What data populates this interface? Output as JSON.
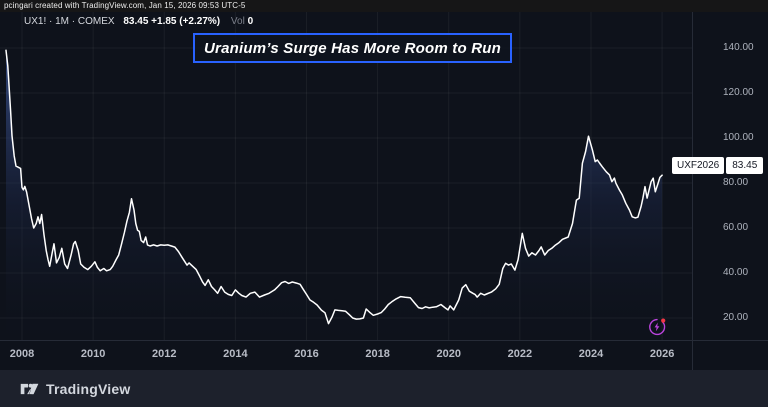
{
  "attribution": {
    "text": "pcingari created with TradingView.com, Jan 15, 2026 09:53 UTC-5"
  },
  "legend": {
    "symbol_line": "UX1! · 1M · COMEX",
    "price_change": "83.45 +1.85 (+2.27%)",
    "volume_label": "Vol",
    "volume_value": "0"
  },
  "annotation_title": "Uranium’s Surge Has More Room to Run",
  "series_label": {
    "contract": "UXF2026",
    "price": "83.45"
  },
  "footer": {
    "brand": "TradingView"
  },
  "icons": {
    "event_icon": "lightning-bolt-in-circle-with-red-dot"
  },
  "colors": {
    "background": "#0e121b",
    "line": "#ffffff",
    "area_top": "rgba(72,102,178,0.72)",
    "area_mid": "rgba(30,42,78,0.38)",
    "area_bottom": "rgba(15,19,30,0.04)",
    "grid": "rgba(255,255,255,0.055)",
    "axis_text": "#aeb3bd",
    "accent_blue": "#2962ff",
    "event_purple": "#bb44dd",
    "event_red": "#f23645",
    "footer_bg": "#1d212c"
  },
  "chart_data": {
    "type": "area",
    "title": "Uranium’s Surge Has More Room to Run",
    "series_name": "UX1! COMEX uranium futures, monthly",
    "xlabel": "",
    "ylabel": "",
    "x_axis": {
      "ticks": [
        2008,
        2010,
        2012,
        2014,
        2016,
        2018,
        2020,
        2022,
        2024,
        2026
      ],
      "range": [
        2007.4,
        2026.9
      ]
    },
    "y_axis": {
      "ticks": [
        20,
        40,
        60,
        80,
        100,
        120,
        140
      ],
      "tick_format": "0.00",
      "range": [
        8,
        152
      ]
    },
    "grid": true,
    "legend_position": "none",
    "last_value": 83.45,
    "points": [
      [
        2007.55,
        139
      ],
      [
        2007.6,
        132
      ],
      [
        2007.63,
        125
      ],
      [
        2007.68,
        112
      ],
      [
        2007.72,
        101
      ],
      [
        2007.78,
        92
      ],
      [
        2007.83,
        87.5
      ],
      [
        2007.9,
        87
      ],
      [
        2007.96,
        86.5
      ],
      [
        2008.0,
        78
      ],
      [
        2008.04,
        77
      ],
      [
        2008.08,
        78.5
      ],
      [
        2008.13,
        76
      ],
      [
        2008.2,
        70
      ],
      [
        2008.27,
        64
      ],
      [
        2008.33,
        60
      ],
      [
        2008.4,
        62
      ],
      [
        2008.45,
        65
      ],
      [
        2008.5,
        62
      ],
      [
        2008.55,
        66
      ],
      [
        2008.62,
        57
      ],
      [
        2008.68,
        50
      ],
      [
        2008.73,
        46
      ],
      [
        2008.78,
        43
      ],
      [
        2008.85,
        49
      ],
      [
        2008.9,
        53
      ],
      [
        2008.97,
        44.5
      ],
      [
        2009.05,
        47
      ],
      [
        2009.12,
        51
      ],
      [
        2009.2,
        44
      ],
      [
        2009.28,
        42
      ],
      [
        2009.38,
        48
      ],
      [
        2009.45,
        53
      ],
      [
        2009.5,
        54
      ],
      [
        2009.58,
        50
      ],
      [
        2009.65,
        44
      ],
      [
        2009.75,
        42.5
      ],
      [
        2009.85,
        41.5
      ],
      [
        2009.95,
        43
      ],
      [
        2010.05,
        45
      ],
      [
        2010.12,
        42.5
      ],
      [
        2010.2,
        41
      ],
      [
        2010.3,
        42
      ],
      [
        2010.38,
        41
      ],
      [
        2010.48,
        41.5
      ],
      [
        2010.55,
        43
      ],
      [
        2010.65,
        46
      ],
      [
        2010.72,
        48
      ],
      [
        2010.8,
        53
      ],
      [
        2010.88,
        58
      ],
      [
        2010.95,
        63
      ],
      [
        2011.02,
        67
      ],
      [
        2011.08,
        73
      ],
      [
        2011.15,
        68
      ],
      [
        2011.2,
        62
      ],
      [
        2011.25,
        59
      ],
      [
        2011.3,
        58.5
      ],
      [
        2011.35,
        54.5
      ],
      [
        2011.42,
        53.5
      ],
      [
        2011.48,
        56
      ],
      [
        2011.53,
        52.5
      ],
      [
        2011.6,
        52
      ],
      [
        2011.7,
        52.5
      ],
      [
        2011.8,
        52
      ],
      [
        2011.9,
        52.5
      ],
      [
        2012.0,
        52.3
      ],
      [
        2012.1,
        52.5
      ],
      [
        2012.2,
        52
      ],
      [
        2012.3,
        51.5
      ],
      [
        2012.4,
        49.5
      ],
      [
        2012.5,
        47
      ],
      [
        2012.58,
        45
      ],
      [
        2012.64,
        43.5
      ],
      [
        2012.7,
        44.5
      ],
      [
        2012.8,
        43
      ],
      [
        2012.9,
        41.5
      ],
      [
        2013.0,
        38.5
      ],
      [
        2013.08,
        36
      ],
      [
        2013.15,
        34.5
      ],
      [
        2013.24,
        37
      ],
      [
        2013.33,
        34
      ],
      [
        2013.42,
        32.5
      ],
      [
        2013.5,
        31
      ],
      [
        2013.6,
        34
      ],
      [
        2013.7,
        31.5
      ],
      [
        2013.8,
        30.5
      ],
      [
        2013.9,
        30
      ],
      [
        2014.0,
        32.5
      ],
      [
        2014.1,
        31
      ],
      [
        2014.18,
        30
      ],
      [
        2014.3,
        29.3
      ],
      [
        2014.42,
        31
      ],
      [
        2014.55,
        31.5
      ],
      [
        2014.68,
        29.3
      ],
      [
        2014.82,
        30.2
      ],
      [
        2014.95,
        31
      ],
      [
        2015.1,
        32.5
      ],
      [
        2015.2,
        34
      ],
      [
        2015.3,
        35.7
      ],
      [
        2015.4,
        36.2
      ],
      [
        2015.5,
        35.4
      ],
      [
        2015.6,
        36
      ],
      [
        2015.72,
        35.5
      ],
      [
        2015.82,
        35
      ],
      [
        2015.9,
        33
      ],
      [
        2016.0,
        30.5
      ],
      [
        2016.1,
        28
      ],
      [
        2016.2,
        27
      ],
      [
        2016.3,
        25.8
      ],
      [
        2016.42,
        23.5
      ],
      [
        2016.52,
        22.3
      ],
      [
        2016.62,
        17.5
      ],
      [
        2016.72,
        20.5
      ],
      [
        2016.8,
        23.6
      ],
      [
        2016.9,
        23.4
      ],
      [
        2017.0,
        23.2
      ],
      [
        2017.1,
        23
      ],
      [
        2017.2,
        21.5
      ],
      [
        2017.3,
        20
      ],
      [
        2017.4,
        19.5
      ],
      [
        2017.5,
        19.6
      ],
      [
        2017.6,
        20
      ],
      [
        2017.68,
        24
      ],
      [
        2017.78,
        22.5
      ],
      [
        2017.88,
        21.2
      ],
      [
        2018.0,
        21.8
      ],
      [
        2018.1,
        22.4
      ],
      [
        2018.2,
        24
      ],
      [
        2018.3,
        26
      ],
      [
        2018.4,
        27.2
      ],
      [
        2018.52,
        28.5
      ],
      [
        2018.65,
        29.5
      ],
      [
        2018.78,
        29.2
      ],
      [
        2018.92,
        29
      ],
      [
        2019.05,
        26.5
      ],
      [
        2019.15,
        24.6
      ],
      [
        2019.25,
        24.2
      ],
      [
        2019.35,
        25
      ],
      [
        2019.45,
        24.5
      ],
      [
        2019.55,
        24.8
      ],
      [
        2019.65,
        25
      ],
      [
        2019.78,
        26
      ],
      [
        2019.9,
        24.5
      ],
      [
        2019.98,
        23.6
      ],
      [
        2020.04,
        25.4
      ],
      [
        2020.14,
        23.6
      ],
      [
        2020.28,
        28
      ],
      [
        2020.38,
        33.3
      ],
      [
        2020.48,
        34.8
      ],
      [
        2020.58,
        31.9
      ],
      [
        2020.68,
        31
      ],
      [
        2020.74,
        30.5
      ],
      [
        2020.8,
        29.3
      ],
      [
        2020.9,
        31
      ],
      [
        2021.0,
        30.2
      ],
      [
        2021.1,
        30.9
      ],
      [
        2021.2,
        31.5
      ],
      [
        2021.32,
        33
      ],
      [
        2021.42,
        35
      ],
      [
        2021.52,
        42
      ],
      [
        2021.6,
        44.3
      ],
      [
        2021.68,
        43.5
      ],
      [
        2021.76,
        44
      ],
      [
        2021.86,
        41.3
      ],
      [
        2021.95,
        46
      ],
      [
        2022.07,
        57.6
      ],
      [
        2022.16,
        51
      ],
      [
        2022.25,
        47.5
      ],
      [
        2022.34,
        49
      ],
      [
        2022.44,
        48
      ],
      [
        2022.54,
        50
      ],
      [
        2022.6,
        51.6
      ],
      [
        2022.7,
        48
      ],
      [
        2022.8,
        50
      ],
      [
        2022.9,
        51
      ],
      [
        2023.0,
        52.4
      ],
      [
        2023.1,
        53.5
      ],
      [
        2023.2,
        55
      ],
      [
        2023.36,
        56
      ],
      [
        2023.48,
        62
      ],
      [
        2023.59,
        72.4
      ],
      [
        2023.67,
        73.2
      ],
      [
        2023.76,
        88.8
      ],
      [
        2023.85,
        94
      ],
      [
        2023.93,
        100.8
      ],
      [
        2024.04,
        94.7
      ],
      [
        2024.12,
        89.5
      ],
      [
        2024.18,
        90.2
      ],
      [
        2024.24,
        88.9
      ],
      [
        2024.32,
        87.2
      ],
      [
        2024.43,
        85
      ],
      [
        2024.52,
        83.6
      ],
      [
        2024.59,
        80.6
      ],
      [
        2024.66,
        82.2
      ],
      [
        2024.7,
        79.9
      ],
      [
        2024.8,
        76.9
      ],
      [
        2024.88,
        74.7
      ],
      [
        2024.98,
        71
      ],
      [
        2025.08,
        68
      ],
      [
        2025.16,
        65
      ],
      [
        2025.25,
        64.5
      ],
      [
        2025.32,
        64.8
      ],
      [
        2025.41,
        69.6
      ],
      [
        2025.46,
        73.3
      ],
      [
        2025.52,
        78.4
      ],
      [
        2025.58,
        73.3
      ],
      [
        2025.69,
        80.6
      ],
      [
        2025.75,
        82.2
      ],
      [
        2025.81,
        76.1
      ],
      [
        2025.88,
        79.5
      ],
      [
        2025.94,
        82.5
      ],
      [
        2026.0,
        83.45
      ]
    ]
  }
}
